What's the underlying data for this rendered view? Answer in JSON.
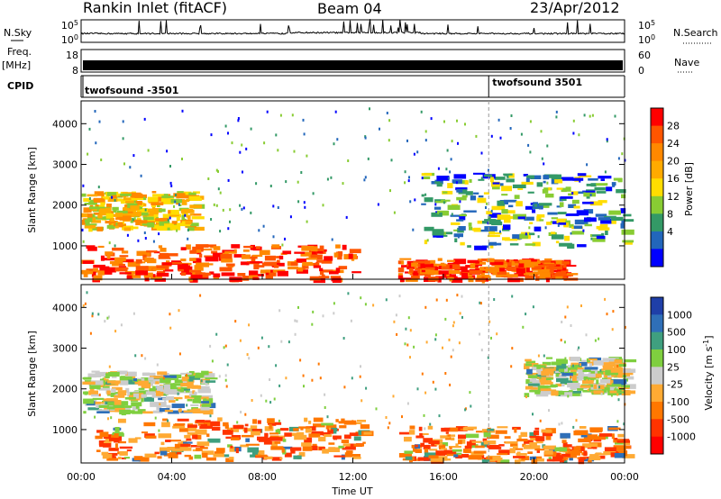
{
  "header": {
    "title": "Rankin Inlet (fitACF)",
    "beam": "Beam 04",
    "date": "23/Apr/2012"
  },
  "top_panels": {
    "nsky_label": "N.Sky",
    "nsearch_label": "N.Search",
    "nsky_ticks": [
      "10^5",
      "10^0"
    ],
    "nsearch_ticks": [
      "10^5",
      "10^0"
    ],
    "freq_label_line1": "Freq.",
    "freq_label_line2": "[MHz]",
    "freq_ticks": [
      "18",
      "8"
    ],
    "nave_label": "Nave",
    "nave_ticks": [
      "60",
      "0"
    ],
    "cpid_label": "CPID",
    "cpid_entries": [
      {
        "text": "twofsound -3501",
        "hour": 0.0
      },
      {
        "text": "twofsound 3501",
        "hour": 18.0
      }
    ]
  },
  "chart_data": [
    {
      "type": "heatmap",
      "name": "power",
      "ylabel": "Slant Range [km]",
      "ylim": [
        180,
        4560
      ],
      "yticks": [
        1000,
        2000,
        3000,
        4000
      ],
      "colorbar_label": "Power [dB]",
      "colorbar_ticks": [
        "28",
        "24",
        "20",
        "16",
        "12",
        "8",
        "4"
      ],
      "colors": [
        "#ff0000",
        "#ff5500",
        "#ff8800",
        "#ffaa00",
        "#ffdd00",
        "#88cc33",
        "#339966",
        "#2266bb",
        "#0000ff"
      ],
      "regions": [
        {
          "hours": [
            0.0,
            12.0
          ],
          "range": [
            200,
            1050
          ],
          "level": "high"
        },
        {
          "hours": [
            14.0,
            21.5
          ],
          "range": [
            200,
            700
          ],
          "level": "high"
        },
        {
          "hours": [
            0.0,
            5.0
          ],
          "range": [
            1450,
            2350
          ],
          "level": "mid"
        },
        {
          "hours": [
            15.0,
            24.0
          ],
          "range": [
            1000,
            2800
          ],
          "level": "low"
        }
      ]
    },
    {
      "type": "heatmap",
      "name": "velocity",
      "xlabel": "Time UT",
      "ylabel": "Slant Range [km]",
      "xlim": [
        0,
        24
      ],
      "xticks": [
        "00:00",
        "04:00",
        "08:00",
        "12:00",
        "16:00",
        "20:00",
        "00:00"
      ],
      "ylim": [
        180,
        4560
      ],
      "yticks": [
        1000,
        2000,
        3000,
        4000
      ],
      "colorbar_label": "Velocity [m s^-1]",
      "colorbar_ticks": [
        "1000",
        "500",
        "100",
        "25",
        "-25",
        "-100",
        "-500",
        "-1000"
      ],
      "colors": [
        "#1f3fa8",
        "#2f6fb8",
        "#3f9f7f",
        "#7fcf3f",
        "#cccccc",
        "#ffaa33",
        "#ff7700",
        "#ff3300",
        "#ff0000"
      ],
      "regions": [
        {
          "hours": [
            0.0,
            5.5
          ],
          "range": [
            1450,
            2450
          ],
          "level": "near-zero"
        },
        {
          "hours": [
            0.5,
            12.5
          ],
          "range": [
            300,
            1300
          ],
          "level": "negative"
        },
        {
          "hours": [
            14.0,
            24.0
          ],
          "range": [
            250,
            1100
          ],
          "level": "negative"
        },
        {
          "hours": [
            19.5,
            24.0
          ],
          "range": [
            1900,
            2800
          ],
          "level": "near-zero"
        }
      ]
    }
  ]
}
